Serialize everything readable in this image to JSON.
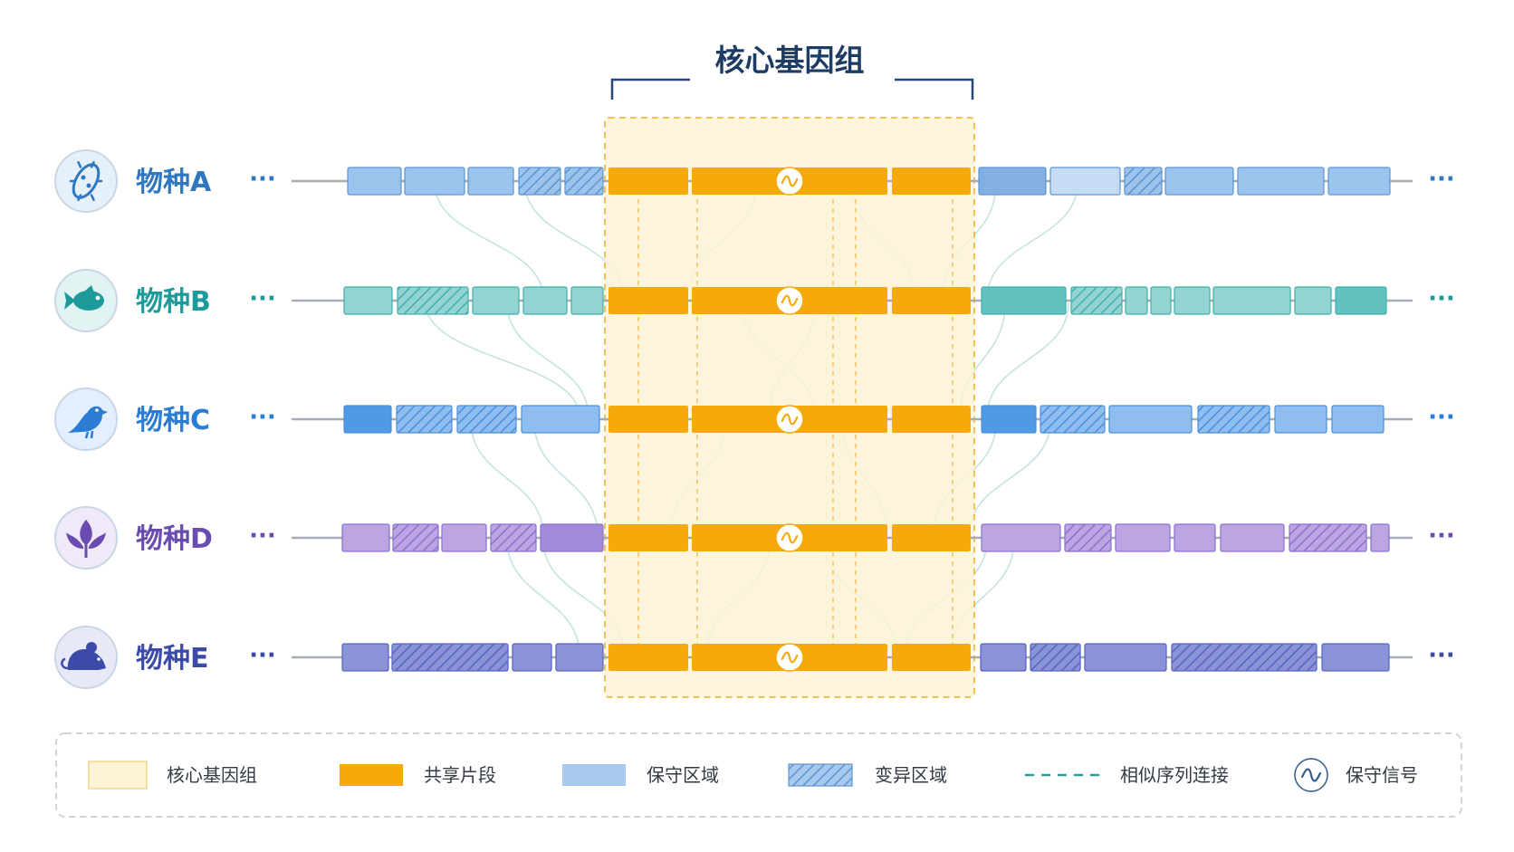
{
  "title": "核心基因组",
  "ellipsis": "···",
  "species": [
    {
      "label": "物种A",
      "icon": "bacterium-icon",
      "color": "#2f78bf",
      "fill": "#9cc3ec",
      "stroke": "#5b95d3",
      "dark": "#82b0e3",
      "circle": "#e6f0fb"
    },
    {
      "label": "物种B",
      "icon": "fish-icon",
      "color": "#1f9a9a",
      "fill": "#93d4d2",
      "stroke": "#3fb0ad",
      "dark": "#62c2bf",
      "circle": "#e1f4f3"
    },
    {
      "label": "物种C",
      "icon": "bird-icon",
      "color": "#2b7cd3",
      "fill": "#8fbdf0",
      "stroke": "#4a8fdc",
      "dark": "#4f99e5",
      "circle": "#e3efff"
    },
    {
      "label": "物种D",
      "icon": "plant-icon",
      "color": "#6a4bb0",
      "fill": "#bba6e3",
      "stroke": "#8c70cd",
      "dark": "#a18ad9",
      "circle": "#efe9fa"
    },
    {
      "label": "物种E",
      "icon": "mouse-icon",
      "color": "#3c4aa8",
      "fill": "#8a93d8",
      "stroke": "#5663bf",
      "dark": "#7680d0",
      "circle": "#e7e9f8"
    }
  ],
  "legend": [
    {
      "key": "core",
      "label": "核心基因组"
    },
    {
      "key": "shared",
      "label": "共享片段"
    },
    {
      "key": "conserved",
      "label": "保守区域"
    },
    {
      "key": "variable",
      "label": "变异区域"
    },
    {
      "key": "link",
      "label": "相似序列连接"
    },
    {
      "key": "signal",
      "label": "保守信号"
    }
  ],
  "colors": {
    "core_fill": "#fdf3d6",
    "core_border": "#f2b73c",
    "shared": "#f5a90a",
    "bracket": "#25477a",
    "link": "#bfe0df",
    "legend_border": "#cfd5dc"
  }
}
